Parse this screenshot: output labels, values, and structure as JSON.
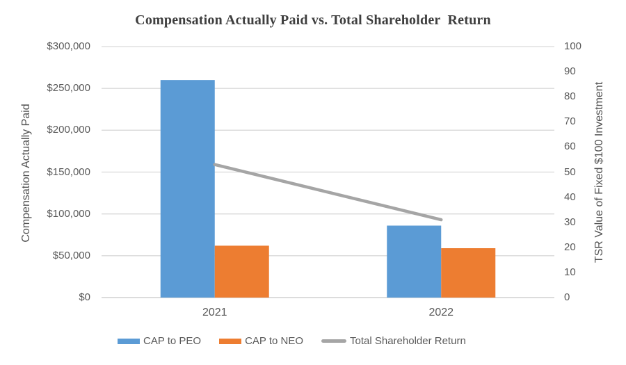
{
  "chart_data": {
    "type": "bar+line",
    "title": "Compensation Actually Paid vs. Total Shareholder  Return",
    "categories": [
      "2021",
      "2022"
    ],
    "series": [
      {
        "name": "CAP to PEO",
        "type": "bar",
        "axis": "left",
        "color": "#5B9BD5",
        "values": [
          260000,
          86000
        ]
      },
      {
        "name": "CAP to NEO",
        "type": "bar",
        "axis": "left",
        "color": "#ED7D31",
        "values": [
          62000,
          59000
        ]
      },
      {
        "name": "Total Shareholder Return",
        "type": "line",
        "axis": "right",
        "color": "#A5A5A5",
        "values": [
          53,
          31
        ]
      }
    ],
    "left_axis": {
      "label": "Compensation Actually Paid",
      "min": 0,
      "max": 300000,
      "tick_step": 50000,
      "tick_labels": [
        "$300,000",
        "$250,000",
        "$200,000",
        "$150,000",
        "$100,000",
        "$50,000",
        "$0"
      ]
    },
    "right_axis": {
      "label": "TSR Value of Fixed $100 Investment",
      "min": 0,
      "max": 100,
      "tick_step": 10,
      "tick_labels": [
        "100",
        "90",
        "80",
        "70",
        "60",
        "50",
        "40",
        "30",
        "20",
        "10",
        "0"
      ]
    },
    "legend": {
      "position": "bottom"
    },
    "grid": true,
    "colors": {
      "gridline": "#D9D9D9",
      "baseline": "#C6C6C6",
      "tick_text": "#595959",
      "title_text": "#3F3F3F",
      "background": "#FFFFFF"
    }
  }
}
